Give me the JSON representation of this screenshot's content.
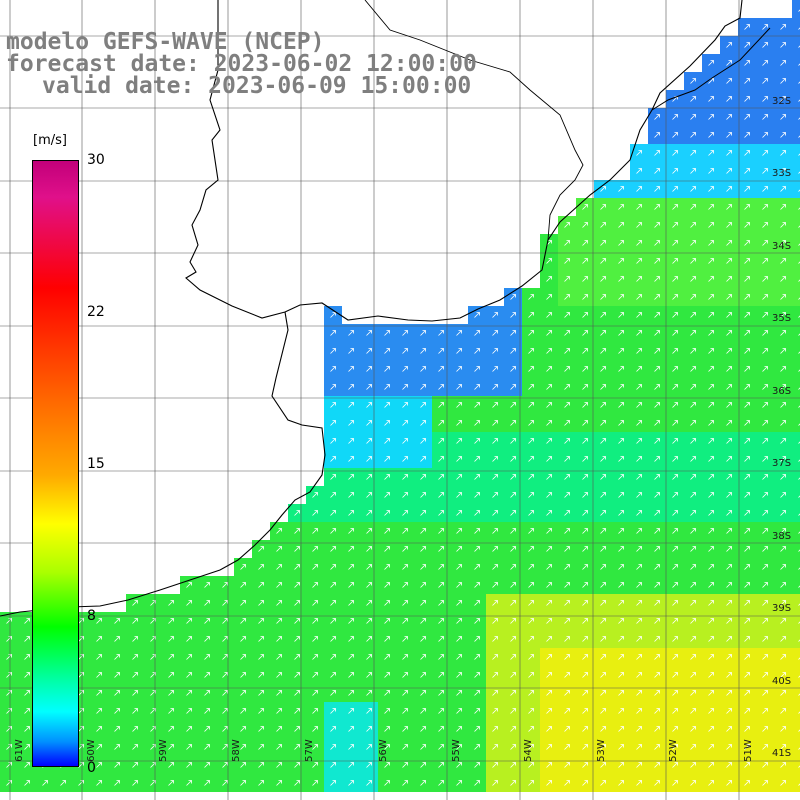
{
  "header": {
    "line1": "modelo GEFS-WAVE (NCEP)",
    "line2": "forecast date: 2023-06-02 12:00:00",
    "line3": "valid date: 2023-06-09 15:00:00"
  },
  "colorbar": {
    "unit": "[m/s]",
    "ticks": [
      "30",
      "22",
      "15",
      "8",
      "0"
    ],
    "colors": [
      "#c2007a",
      "#ff0000",
      "#ff6a00",
      "#ffff00",
      "#00ff00",
      "#00ffff",
      "#0000ff"
    ]
  },
  "map_data": {
    "variable": "wind speed",
    "units": "m/s",
    "lon_labels": [
      "61W",
      "60W",
      "59W",
      "58W",
      "57W",
      "56W",
      "55W",
      "54W",
      "53W",
      "52W",
      "51W"
    ],
    "lat_labels": [
      "32S",
      "33S",
      "34S",
      "35S",
      "36S",
      "37S",
      "38S",
      "39S",
      "40S",
      "41S"
    ],
    "lon_range": [
      -61.5,
      -50.5
    ],
    "lat_range": [
      -31.5,
      -41.5
    ],
    "wind_direction": "from southwest toward northeast",
    "grid": true
  }
}
